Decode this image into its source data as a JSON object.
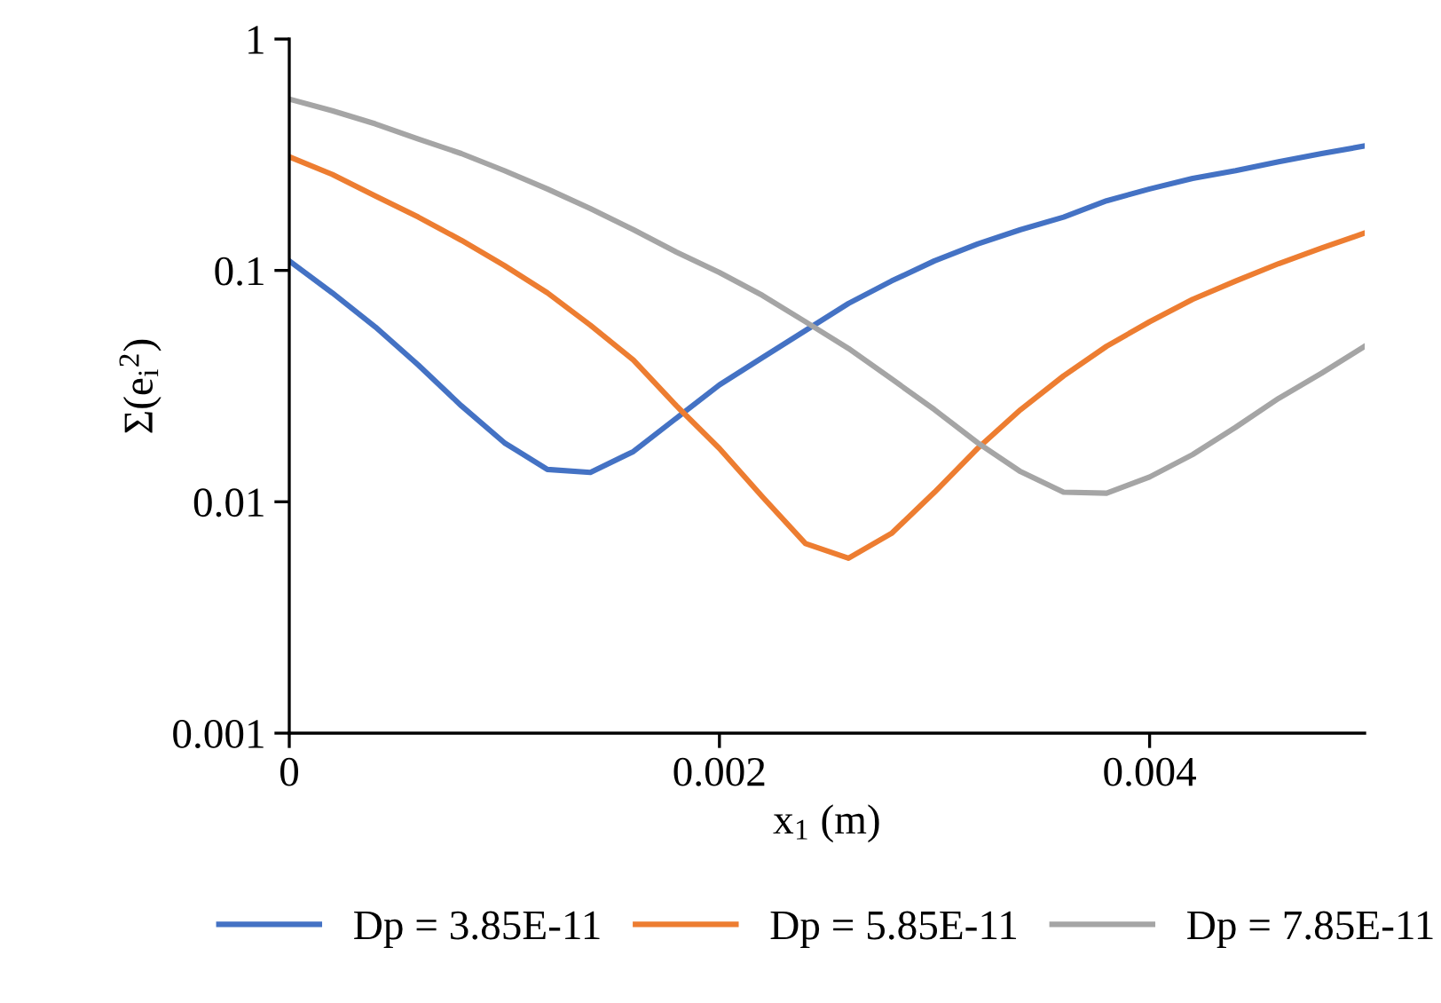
{
  "chart_data": {
    "type": "line",
    "xlabel": "x$_{1}$ (m)",
    "ylabel": "Σ(e$_{i}$$^{2}$)",
    "log": "y",
    "xlim": [
      0,
      0.005
    ],
    "xticks": [
      0,
      0.002,
      0.004
    ],
    "ylim": [
      0.001,
      1
    ],
    "yticks": [
      0.001,
      0.01,
      0.1,
      1
    ],
    "grid": false,
    "legend": "bottom",
    "marker": "none",
    "line_style": "solid",
    "x": [
      0,
      0.0002,
      0.0004,
      0.0006,
      0.0008,
      0.001,
      0.0012,
      0.0014,
      0.0016,
      0.0018,
      0.002,
      0.0022,
      0.0024,
      0.0026,
      0.0028,
      0.003,
      0.0032,
      0.0034,
      0.0036,
      0.0038,
      0.004,
      0.0042,
      0.0044,
      0.0046,
      0.0048,
      0.005
    ],
    "series": [
      {
        "name": "Dp = 3.85E-11",
        "color": "#4472c4",
        "values": [
          0.11,
          0.08,
          0.057,
          0.039,
          0.026,
          0.018,
          0.0138,
          0.0134,
          0.0165,
          0.023,
          0.032,
          0.042,
          0.055,
          0.072,
          0.09,
          0.11,
          0.13,
          0.15,
          0.17,
          0.2,
          0.225,
          0.25,
          0.27,
          0.295,
          0.32,
          0.345
        ]
      },
      {
        "name": "Dp = 5.85E-11",
        "color": "#ed7d31",
        "values": [
          0.31,
          0.26,
          0.21,
          0.17,
          0.135,
          0.105,
          0.08,
          0.058,
          0.041,
          0.026,
          0.017,
          0.0105,
          0.0066,
          0.0057,
          0.0073,
          0.011,
          0.017,
          0.025,
          0.035,
          0.047,
          0.06,
          0.075,
          0.09,
          0.107,
          0.125,
          0.145
        ]
      },
      {
        "name": "Dp = 7.85E-11",
        "color": "#a5a5a5",
        "values": [
          0.55,
          0.49,
          0.43,
          0.37,
          0.32,
          0.27,
          0.225,
          0.185,
          0.15,
          0.12,
          0.098,
          0.078,
          0.06,
          0.046,
          0.034,
          0.025,
          0.018,
          0.0135,
          0.011,
          0.0109,
          0.0128,
          0.016,
          0.021,
          0.028,
          0.036,
          0.047
        ]
      }
    ]
  }
}
